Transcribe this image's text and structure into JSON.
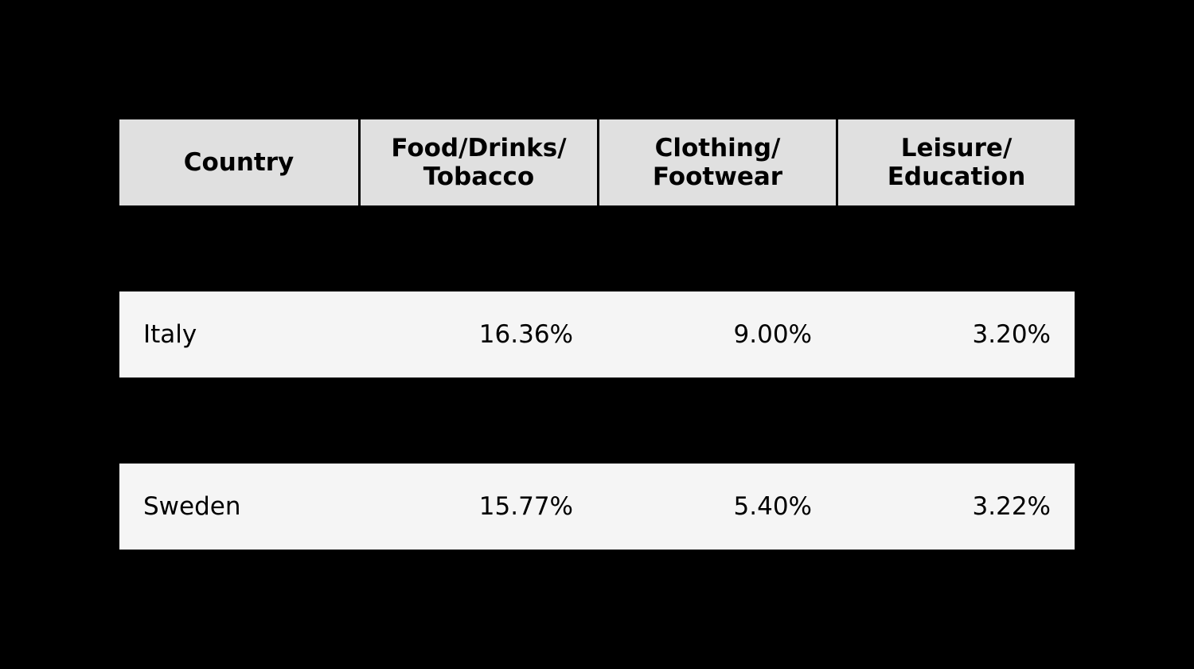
{
  "chart_data": {
    "type": "table",
    "columns": [
      "Country",
      "Food/Drinks/\nTobacco",
      "Clothing/\nFootwear",
      "Leisure/\nEducation"
    ],
    "rows": [
      [
        "Italy",
        "16.36%",
        "9.00%",
        "3.20%"
      ],
      [
        "Sweden",
        "15.77%",
        "5.40%",
        "3.22%"
      ]
    ],
    "colors": {
      "background": "#000000",
      "header_fill": "#e0e0e0",
      "row_fill": "#f5f5f5"
    }
  }
}
